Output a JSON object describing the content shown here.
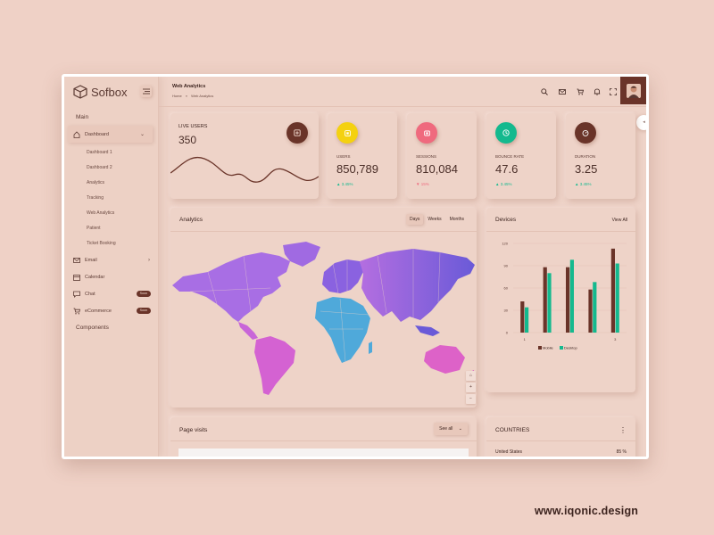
{
  "brand": {
    "name": "Sofbox"
  },
  "sidebar": {
    "section_main": "Main",
    "dashboard_label": "Dashboard",
    "sub_items": [
      "Dashboard 1",
      "Dashboard 2",
      "Analytics",
      "Tracking",
      "Web Analytics",
      "Patient",
      "Ticket Booking"
    ],
    "items": [
      {
        "label": "Email",
        "icon": "mail-icon"
      },
      {
        "label": "Calendar",
        "icon": "calendar-icon"
      },
      {
        "label": "Chat",
        "icon": "chat-icon",
        "badge": "Soon"
      },
      {
        "label": "eCommerce",
        "icon": "cart-icon",
        "badge": "Soon"
      }
    ],
    "section_components": "Components"
  },
  "header": {
    "title": "Web Analytics",
    "breadcrumb_home": "Home",
    "breadcrumb_sep": "»",
    "breadcrumb_current": "Web Analytics",
    "icons": [
      "search-icon",
      "mail-icon",
      "cart-icon",
      "bell-icon",
      "fullscreen-icon"
    ]
  },
  "live_users": {
    "label": "LIVE USERS",
    "value": "350"
  },
  "stats": [
    {
      "label": "USERS",
      "value": "850,789",
      "change": "▲ 3.45%",
      "color": "#f4d110",
      "trend": "up"
    },
    {
      "label": "SESSIONS",
      "value": "810,084",
      "change": "▼ 15%",
      "color": "#ef6a7e",
      "trend": "down"
    },
    {
      "label": "BOUNCE RATE",
      "value": "47.6",
      "change": "▲ 3.45%",
      "color": "#14b98e",
      "trend": "up"
    },
    {
      "label": "DURATION",
      "value": "3.25",
      "change": "▲ 3.45%",
      "color": "#6a3429",
      "trend": "up"
    }
  ],
  "analytics": {
    "title": "Analytics",
    "tabs": [
      "Days",
      "Weeks",
      "Months"
    ],
    "active_tab": "Days",
    "map_controls": [
      "⌂",
      "+",
      "−"
    ]
  },
  "devices": {
    "title": "Devices",
    "view_all": "View All",
    "chart_data": {
      "type": "bar",
      "categories": [
        "1",
        "2",
        "3",
        "4",
        "5"
      ],
      "x_tick_labels": [
        "1",
        "",
        "",
        "",
        "3"
      ],
      "ylim": [
        0,
        120
      ],
      "yticks": [
        0,
        30,
        60,
        90,
        120
      ],
      "series": [
        {
          "name": "Mobile",
          "values": [
            42,
            88,
            88,
            58,
            113
          ],
          "color": "#6a3429"
        },
        {
          "name": "Desktop",
          "values": [
            34,
            80,
            98,
            68,
            93
          ],
          "color": "#14b98e"
        }
      ]
    }
  },
  "page_visits": {
    "title": "Page visits",
    "select_label": "See all"
  },
  "countries": {
    "title": "COUNTRIES",
    "rows": [
      {
        "name": "United States",
        "value": "85 %"
      }
    ]
  },
  "watermark": "www.iqonic.design"
}
